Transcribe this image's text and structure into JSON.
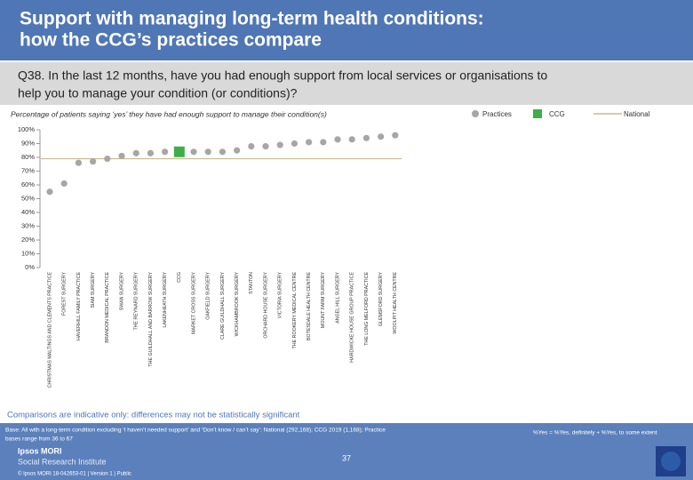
{
  "slide": {
    "title_line1": "Support with managing long-term health conditions:",
    "title_line2": "how the CCG’s practices compare",
    "question_line1": "Q38. In the last 12 months, have you had enough support from local services or organisations to",
    "question_line2": "help you to manage your condition (or conditions)?",
    "comparisons_note": "Comparisons are indicative only: differences may not be statistically significant",
    "base_line1": "Base: All with a long-term condition excluding ‘I haven’t needed support’ and ‘Don’t know / can’t say’: National (292,168); CCG 2019 (1,168); Practice",
    "base_line2": "bases range from 36 to 67",
    "yes_note": "%Yes = %Yes, definitely + %Yes, to some extent",
    "page_number": "37",
    "logo_line1": "Ipsos MORI",
    "logo_line2": "Social Research Institute",
    "footer": "© Ipsos MORI    18-042653-01 | Version 1 | Public"
  },
  "chart_data": {
    "type": "dot",
    "subtitle": "Percentage of patients saying ‘yes’ they have had enough support to manage their condition(s)",
    "categories": [
      "CHRISTMAS MALTINGS AND CLEMENTS PRACTICE",
      "FOREST SURGERY",
      "HAVERHILL FAMILY PRACTICE",
      "SIAM SURGERY",
      "BRANDON MEDICAL PRACTICE",
      "SWAN SURGERY",
      "THE REYNARD SURGERY",
      "THE GUILDHALL AND BARROW SURGERY",
      "LAKENHEATH SURGERY",
      "CCG",
      "MARKET CROSS SURGERY",
      "OAKFIELD SURGERY",
      "CLARE GUILDHALL SURGERY",
      "WICKHAMBROOK SURGERY",
      "STANTON",
      "ORCHARD HOUSE SURGERY",
      "VICTORIA SURGERY",
      "THE ROOKERY MEDICAL CENTRE",
      "BOTESDALE HEALTH CENTRE",
      "MOUNT FARM SURGERY",
      "ANGEL HILL SURGERY",
      "HARDWICKE HOUSE GROUP PRACTICE",
      "THE LONG MELFORD PRACTICE",
      "GLEMSFORD SURGERY",
      "WOOLPIT HEALTH CENTRE"
    ],
    "series": [
      {
        "name": "Practices",
        "color": "#a6a6a6",
        "marker": "circle",
        "values": [
          55,
          61,
          76,
          77,
          79,
          81,
          83,
          83,
          84,
          null,
          84,
          84,
          84,
          85,
          88,
          88,
          89,
          90,
          91,
          91,
          93,
          93,
          94,
          95,
          96
        ]
      },
      {
        "name": "CCG",
        "color": "#3fae49",
        "marker": "square",
        "values": [
          null,
          null,
          null,
          null,
          null,
          null,
          null,
          null,
          null,
          84,
          null,
          null,
          null,
          null,
          null,
          null,
          null,
          null,
          null,
          null,
          null,
          null,
          null,
          null,
          null
        ]
      }
    ],
    "reference_lines": [
      {
        "name": "National",
        "value": 79,
        "color": "#c9bb8e"
      }
    ],
    "ylim": [
      0,
      100
    ],
    "yticks": [
      {
        "value": 0,
        "label": "0%"
      },
      {
        "value": 10,
        "label": "10%"
      },
      {
        "value": 20,
        "label": "20%"
      },
      {
        "value": 30,
        "label": "30%"
      },
      {
        "value": 40,
        "label": "40%"
      },
      {
        "value": 50,
        "label": "50%"
      },
      {
        "value": 60,
        "label": "60%"
      },
      {
        "value": 70,
        "label": "70%"
      },
      {
        "value": 80,
        "label": "80%"
      },
      {
        "value": 90,
        "label": "90%"
      },
      {
        "value": 100,
        "label": "100%"
      }
    ]
  }
}
